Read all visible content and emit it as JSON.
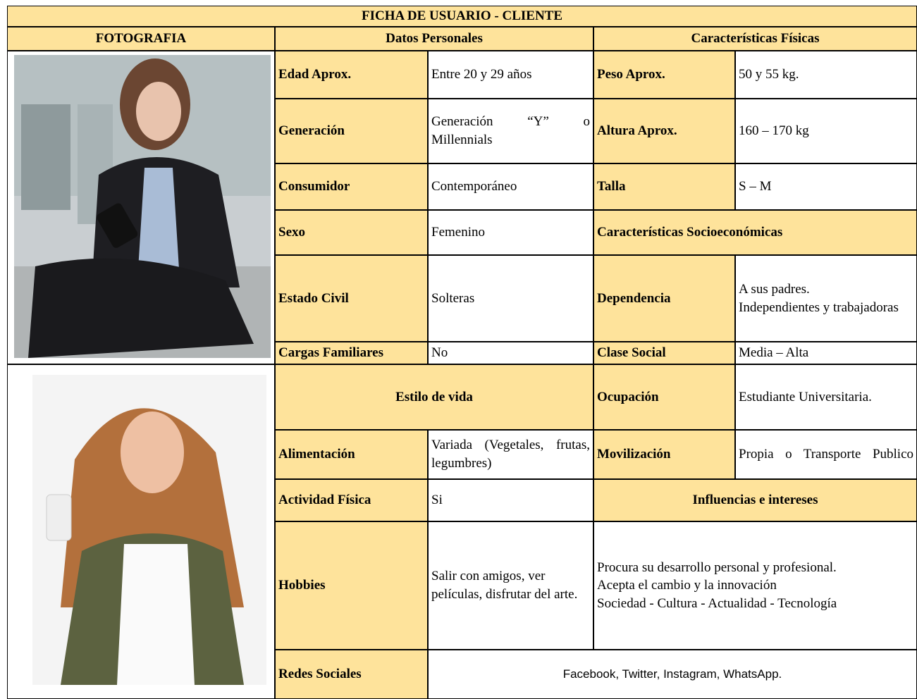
{
  "title": "FICHA DE USUARIO - CLIENTE",
  "headers": [
    "FOTOGRAFIA",
    "Datos Personales",
    "Características Físicas"
  ],
  "personal": [
    {
      "label": "Edad Aprox.",
      "value": "Entre 20 y 29 años"
    },
    {
      "label": "Generación",
      "value": "Generación “Y” o Millennials"
    },
    {
      "label": "Consumidor",
      "value": "Contemporáneo"
    },
    {
      "label": "Sexo",
      "value": "Femenino"
    },
    {
      "label": "Estado Civil",
      "value": "Solteras"
    },
    {
      "label": "Cargas Familiares",
      "value": "No"
    }
  ],
  "physical": [
    {
      "label": "Peso Aprox.",
      "value": "50 y 55 kg."
    },
    {
      "label": "Altura Aprox.",
      "value": "160 – 170 kg"
    },
    {
      "label": "Talla",
      "value": "S – M"
    }
  ],
  "socio_title": "Características Socioeconómicas",
  "socio": [
    {
      "label": "Dependencia",
      "value": [
        "A sus padres.",
        "Independientes y trabajadoras"
      ]
    },
    {
      "label": "Clase Social",
      "value": "Media – Alta"
    },
    {
      "label": "Ocupación",
      "value": "Estudiante Universitaria."
    },
    {
      "label": "Movilización",
      "value": "Propia o Transporte Publico"
    }
  ],
  "lifestyle_title": "Estilo de vida",
  "lifestyle": [
    {
      "label": "Alimentación",
      "value": "Variada (Vegetales, frutas, legumbres)"
    },
    {
      "label": "Actividad Física",
      "value": "Si"
    },
    {
      "label": "Hobbies",
      "value": "Salir con amigos, ver películas, disfrutar del arte."
    }
  ],
  "influences_title": "Influencias e intereses",
  "influences": [
    "Procura su desarrollo personal y profesional.",
    "Acepta el cambio y la innovación",
    "Sociedad - Cultura - Actualidad - Tecnología"
  ],
  "social": {
    "label": "Redes Sociales",
    "value": "Facebook, Twitter, Instagram, WhatsApp."
  }
}
